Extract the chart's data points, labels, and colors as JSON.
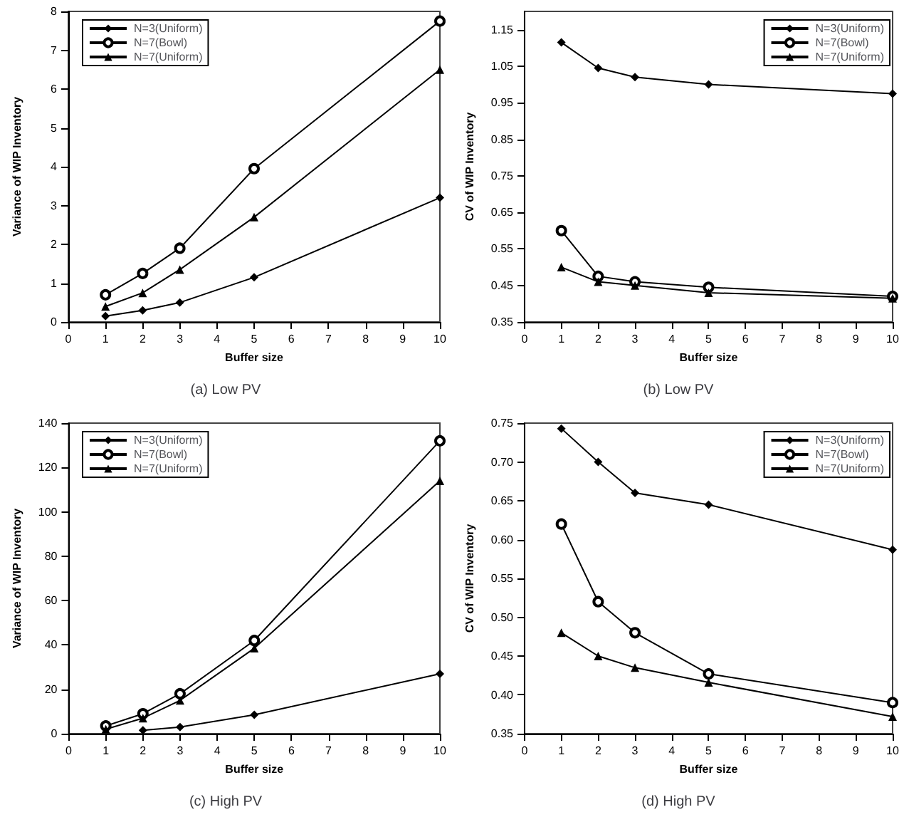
{
  "chart_data": [
    {
      "type": "line",
      "title": "(a) Low PV",
      "xlabel": "Buffer size",
      "ylabel": "Variance of WIP Inventory",
      "x": [
        1,
        2,
        3,
        5,
        10
      ],
      "xlim": [
        0,
        10
      ],
      "xticks": [
        0,
        1,
        2,
        3,
        4,
        5,
        6,
        7,
        8,
        9,
        10
      ],
      "ylim": [
        0,
        8
      ],
      "yticks": [
        0,
        1,
        2,
        3,
        4,
        5,
        6,
        7,
        8
      ],
      "grid": false,
      "legend": "top left",
      "series": [
        {
          "name": "N=3(Uniform)",
          "color": "#000000",
          "marker": "diamond",
          "values": [
            0.15,
            0.3,
            0.5,
            1.15,
            3.2
          ]
        },
        {
          "name": "N=7(Bowl)",
          "color": "#000000",
          "marker": "circle",
          "values": [
            0.7,
            1.25,
            1.9,
            3.95,
            7.75
          ]
        },
        {
          "name": "N=7(Uniform)",
          "color": "#000000",
          "marker": "triangle",
          "values": [
            0.4,
            0.75,
            1.35,
            2.7,
            6.5
          ]
        }
      ]
    },
    {
      "type": "line",
      "title": "(b) Low PV",
      "xlabel": "Buffer size",
      "ylabel": "CV of WIP Inventory",
      "x": [
        1,
        2,
        3,
        5,
        10
      ],
      "xlim": [
        0,
        10
      ],
      "xticks": [
        0,
        1,
        2,
        3,
        4,
        5,
        6,
        7,
        8,
        9,
        10
      ],
      "ylim": [
        0.35,
        1.2
      ],
      "yticks": [
        0.35,
        0.45,
        0.55,
        0.65,
        0.75,
        0.85,
        0.95,
        1.05,
        1.15
      ],
      "grid": false,
      "legend": "top right",
      "series": [
        {
          "name": "N=3(Uniform)",
          "color": "#000000",
          "marker": "diamond",
          "values": [
            1.115,
            1.045,
            1.02,
            1.0,
            0.975
          ]
        },
        {
          "name": "N=7(Bowl)",
          "color": "#000000",
          "marker": "circle",
          "values": [
            0.6,
            0.475,
            0.46,
            0.445,
            0.42
          ]
        },
        {
          "name": "N=7(Uniform)",
          "color": "#000000",
          "marker": "triangle",
          "values": [
            0.5,
            0.46,
            0.45,
            0.43,
            0.415
          ]
        }
      ]
    },
    {
      "type": "line",
      "title": "(c) High PV",
      "xlabel": "Buffer size",
      "ylabel": "Variance of WIP Inventory",
      "x": [
        1,
        2,
        3,
        5,
        10
      ],
      "xlim": [
        0,
        10
      ],
      "xticks": [
        0,
        1,
        2,
        3,
        4,
        5,
        6,
        7,
        8,
        9,
        10
      ],
      "ylim": [
        0,
        140
      ],
      "yticks": [
        0,
        20,
        40,
        60,
        80,
        100,
        120,
        140
      ],
      "grid": false,
      "legend": "top left",
      "series": [
        {
          "name": "N=3(Uniform)",
          "color": "#000000",
          "marker": "diamond",
          "values": [
            null,
            1.5,
            3,
            8.5,
            27
          ]
        },
        {
          "name": "N=7(Bowl)",
          "color": "#000000",
          "marker": "circle",
          "values": [
            3.5,
            9,
            18,
            42,
            132
          ]
        },
        {
          "name": "N=7(Uniform)",
          "color": "#000000",
          "marker": "triangle",
          "values": [
            2,
            7,
            15,
            38.5,
            114
          ]
        }
      ]
    },
    {
      "type": "line",
      "title": "(d) High PV",
      "xlabel": "Buffer size",
      "ylabel": "CV of WIP Inventory",
      "x": [
        1,
        2,
        3,
        5,
        10
      ],
      "xlim": [
        0,
        10
      ],
      "xticks": [
        0,
        1,
        2,
        3,
        4,
        5,
        6,
        7,
        8,
        9,
        10
      ],
      "ylim": [
        0.35,
        0.75
      ],
      "yticks": [
        {
          "value": 0.35,
          "label": "0.35"
        },
        {
          "value": 0.4,
          "label": "0.40"
        },
        {
          "value": 0.45,
          "label": "0.45"
        },
        {
          "value": 0.5,
          "label": "0.50"
        },
        {
          "value": 0.55,
          "label": "0.55"
        },
        {
          "value": 0.6,
          "label": "0.60"
        },
        {
          "value": 0.65,
          "label": "0.65"
        },
        {
          "value": 0.7,
          "label": "0.70"
        },
        {
          "value": 0.75,
          "label": "0.75"
        }
      ],
      "grid": false,
      "legend": "top right",
      "series": [
        {
          "name": "N=3(Uniform)",
          "color": "#000000",
          "marker": "diamond",
          "values": [
            0.743,
            0.7,
            0.66,
            0.645,
            0.587
          ]
        },
        {
          "name": "N=7(Bowl)",
          "color": "#000000",
          "marker": "circle",
          "values": [
            0.62,
            0.52,
            0.48,
            0.427,
            0.39
          ]
        },
        {
          "name": "N=7(Uniform)",
          "color": "#000000",
          "marker": "triangle",
          "values": [
            0.48,
            0.45,
            0.435,
            0.416,
            0.372
          ]
        }
      ]
    }
  ]
}
